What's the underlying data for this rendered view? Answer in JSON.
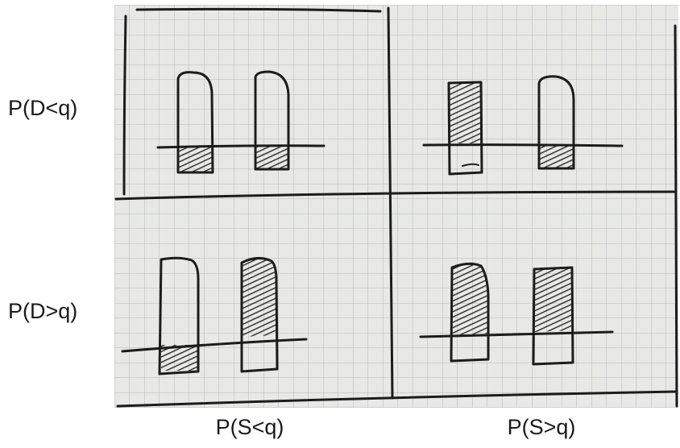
{
  "row_labels": [
    "P(D<q)",
    "P(D>q)"
  ],
  "col_labels": [
    "P(S<q)",
    "P(S>q)"
  ],
  "colors": {
    "paper": "#e8e8e6",
    "grid_line": "#b3b8bd",
    "ink": "#1c1c1c"
  }
}
